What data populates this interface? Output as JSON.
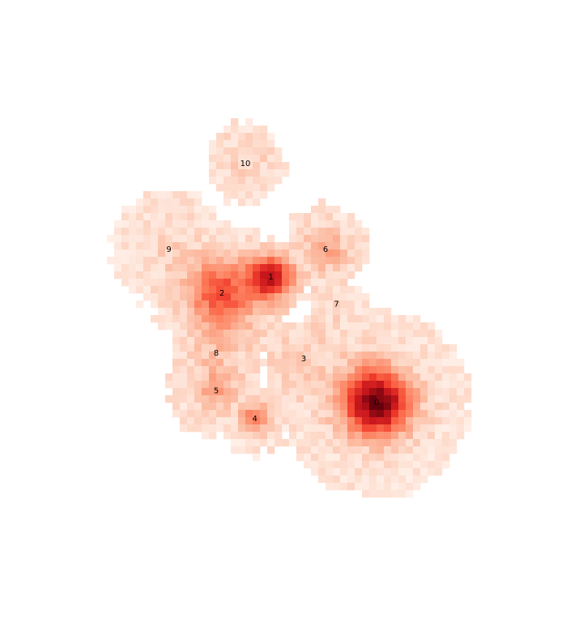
{
  "chart_data": {
    "type": "heatmap",
    "title": "",
    "xlabel": "",
    "ylabel": "",
    "axes_visible": false,
    "grid": false,
    "colormap": "Reds",
    "colors": {
      "low": "#fff5f0",
      "mid": "#fb6a4a",
      "high": "#67000d",
      "background": "#ffffff"
    },
    "grid_size": {
      "cols": 60,
      "rows": 65
    },
    "extent": {
      "x": [
        0,
        60
      ],
      "y": [
        0,
        65
      ]
    },
    "intensity_range": [
      0,
      1
    ],
    "clusters": [
      {
        "label": "0",
        "x": 41.0,
        "y": 45.0,
        "peak": 1.0,
        "spread": 3.2,
        "support": 13.0
      },
      {
        "label": "1",
        "x": 26.5,
        "y": 27.8,
        "peak": 0.78,
        "spread": 2.0,
        "support": 5.0
      },
      {
        "label": "2",
        "x": 19.8,
        "y": 30.0,
        "peak": 0.55,
        "spread": 3.2,
        "support": 9.5
      },
      {
        "label": "3",
        "x": 31.0,
        "y": 39.0,
        "peak": 0.1,
        "spread": 4.0,
        "support": 6.0
      },
      {
        "label": "4",
        "x": 24.3,
        "y": 47.2,
        "peak": 0.4,
        "spread": 1.4,
        "support": 5.0
      },
      {
        "label": "5",
        "x": 19.0,
        "y": 43.4,
        "peak": 0.22,
        "spread": 2.0,
        "support": 6.5
      },
      {
        "label": "6",
        "x": 34.0,
        "y": 24.0,
        "peak": 0.25,
        "spread": 2.2,
        "support": 6.0
      },
      {
        "label": "7",
        "x": 35.5,
        "y": 31.5,
        "peak": 0.05,
        "spread": 2.0,
        "support": 4.0
      },
      {
        "label": "8",
        "x": 19.0,
        "y": 38.2,
        "peak": 0.12,
        "spread": 3.0,
        "support": 6.0
      },
      {
        "label": "9",
        "x": 12.5,
        "y": 24.0,
        "peak": 0.08,
        "spread": 3.0,
        "support": 8.0
      },
      {
        "label": "10",
        "x": 23.0,
        "y": 12.2,
        "peak": 0.1,
        "spread": 2.5,
        "support": 5.5
      }
    ]
  }
}
